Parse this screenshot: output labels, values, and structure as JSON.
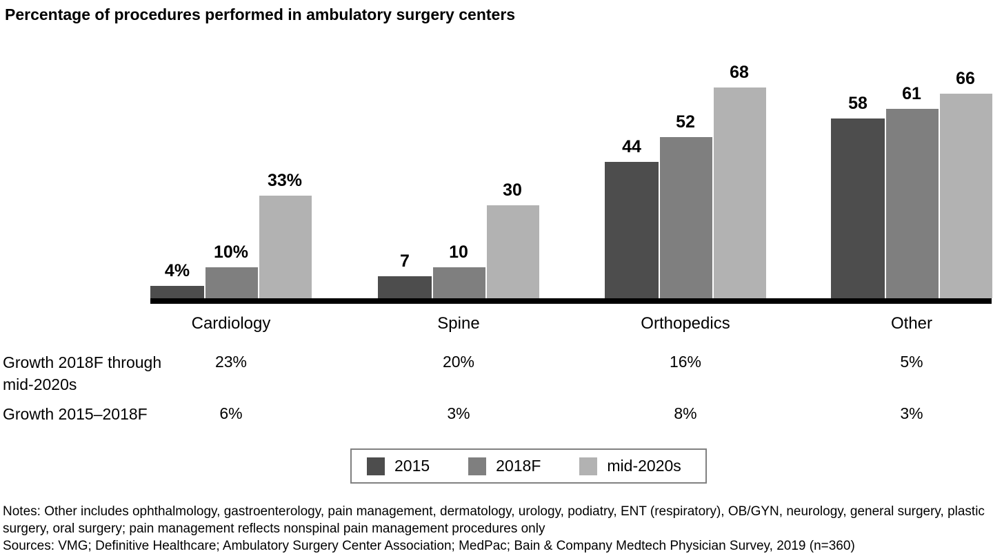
{
  "title": "Percentage of procedures performed in ambulatory surgery centers",
  "colors": {
    "series_2015": "#4d4d4d",
    "series_2018F": "#7f7f7f",
    "series_mid2020s": "#b2b2b2",
    "axis": "#000000",
    "legend_border": "#808080"
  },
  "chart_data": {
    "type": "bar",
    "title": "Percentage of procedures performed in ambulatory surgery centers",
    "categories": [
      "Cardiology",
      "Spine",
      "Orthopedics",
      "Other"
    ],
    "series": [
      {
        "name": "2015",
        "color": "#4d4d4d",
        "values": [
          4,
          7,
          44,
          58
        ],
        "value_labels": [
          "4%",
          "7",
          "44",
          "58"
        ]
      },
      {
        "name": "2018F",
        "color": "#7f7f7f",
        "values": [
          10,
          10,
          52,
          61
        ],
        "value_labels": [
          "10%",
          "10",
          "52",
          "61"
        ]
      },
      {
        "name": "mid-2020s",
        "color": "#b2b2b2",
        "values": [
          33,
          30,
          68,
          66
        ],
        "value_labels": [
          "33%",
          "30",
          "68",
          "66"
        ]
      }
    ],
    "xlabel": "",
    "ylabel": "",
    "ylim": [
      0,
      70
    ],
    "grid": false,
    "legend_position": "bottom",
    "value_labels_shown": true
  },
  "growth_table": {
    "rows": [
      {
        "label": "Growth 2018F through mid-2020s",
        "values": [
          "23%",
          "20%",
          "16%",
          "5%"
        ]
      },
      {
        "label": "Growth 2015–2018F",
        "values": [
          "6%",
          "3%",
          "8%",
          "3%"
        ]
      }
    ]
  },
  "legend": {
    "items": [
      {
        "label": "2015",
        "color": "#4d4d4d"
      },
      {
        "label": "2018F",
        "color": "#7f7f7f"
      },
      {
        "label": "mid-2020s",
        "color": "#b2b2b2"
      }
    ]
  },
  "footnotes": {
    "notes": "Notes: Other includes ophthalmology, gastroenterology, pain management, dermatology, urology, podiatry, ENT (respiratory), OB/GYN, neurology, general surgery, plastic surgery, oral surgery; pain management reflects nonspinal pain management procedures only",
    "sources": "Sources: VMG; Definitive Healthcare; Ambulatory Surgery Center Association; MedPac; Bain & Company Medtech Physician Survey, 2019 (n=360)"
  }
}
